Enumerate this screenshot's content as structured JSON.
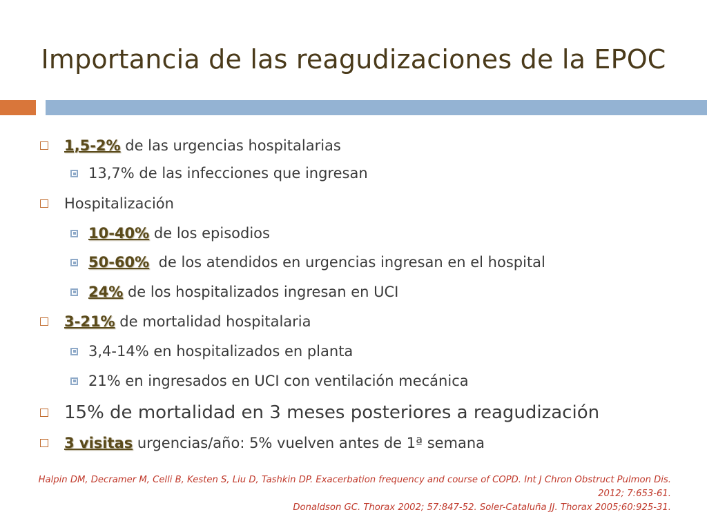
{
  "slide": {
    "title": "Importancia de las reagudizaciones de la EPOC",
    "items": [
      {
        "level": 1,
        "strong": "1,5-2%",
        "text": " de las urgencias hospitalarias"
      },
      {
        "level": 2,
        "strong": "",
        "text": "13,7% de las infecciones que ingresan"
      },
      {
        "level": 1,
        "strong": "",
        "text": "Hospitalización"
      },
      {
        "level": 2,
        "strong": "10-40%",
        "text": " de los episodios"
      },
      {
        "level": 2,
        "strong": "50-60%",
        "text": "  de los atendidos en urgencias ingresan en el hospital"
      },
      {
        "level": 2,
        "strong": "24%",
        "text": " de los hospitalizados ingresan en UCI"
      },
      {
        "level": 1,
        "strong": "3-21%",
        "text": " de mortalidad hospitalaria"
      },
      {
        "level": 2,
        "strong": "",
        "text": "3,4-14% en hospitalizados en planta"
      },
      {
        "level": 2,
        "strong": "",
        "text": "21% en ingresados en UCI con ventilación mecánica"
      },
      {
        "level": 1,
        "strong": "",
        "text": "15% de mortalidad en 3 meses posteriores a reagudización"
      },
      {
        "level": 1,
        "strong": "3 visitas",
        "text": " urgencias/año: 5% vuelven antes de 1ª semana"
      }
    ],
    "references": [
      "Halpin DM, Decramer M, Celli B, Kesten S, Liu D, Tashkin DP. Exacerbation frequency and course of COPD. Int J Chron Obstruct Pulmon Dis.",
      "2012; 7:653-61.",
      "Donaldson GC. Thorax 2002; 57:847-52. Soler-Cataluña JJ. Thorax 2005;60:925-31."
    ],
    "colors": {
      "title": "#4a3a1a",
      "accent_orange": "#d9763a",
      "accent_blue": "#94b3d3",
      "reference_text": "#c0392b"
    }
  }
}
